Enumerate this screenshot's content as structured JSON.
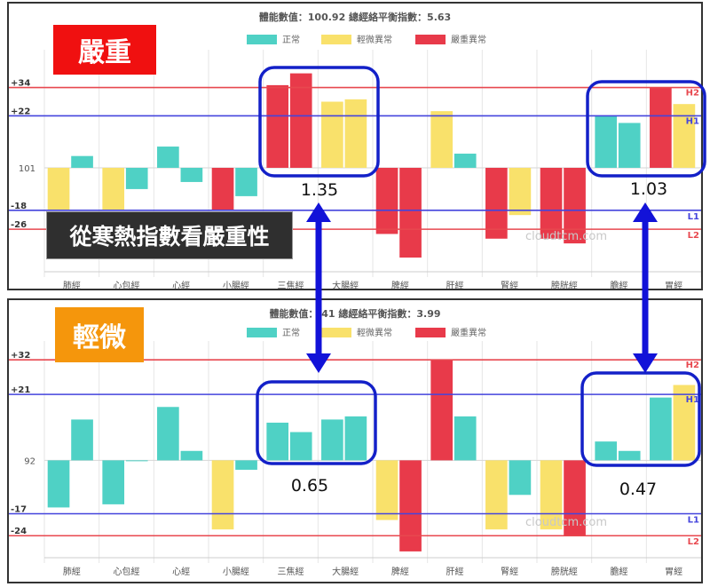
{
  "colors": {
    "normal": "#4fd1c5",
    "mild": "#f9e16b",
    "severe": "#e83a4a",
    "line_red": "#e8484f",
    "line_blue": "#4444dd",
    "box": "#1320c8"
  },
  "labels": {
    "severe_tag": "嚴重",
    "mild_tag": "輕微",
    "caption": "從寒熱指數看嚴重性",
    "watermark": "cloudtcm.com"
  },
  "annotations": {
    "top_left": "1.35",
    "top_right": "1.03",
    "bottom_left": "0.65",
    "bottom_right": "0.47"
  },
  "chart_data": [
    {
      "type": "bar",
      "title": "體能數值：100.92 總經絡平衡指數：5.63",
      "legend": [
        "正常",
        "輕微異常",
        "嚴重異常"
      ],
      "categories": [
        "肺經",
        "心包經",
        "心經",
        "小腸經",
        "三焦經",
        "大腸經",
        "脾經",
        "肝經",
        "腎經",
        "膀胱經",
        "膽經",
        "胃經"
      ],
      "baseline_label": "101",
      "reference_lines": [
        {
          "label": "+34",
          "tag": "H2",
          "value": 34,
          "color": "red"
        },
        {
          "label": "+22",
          "tag": "H1",
          "value": 22,
          "color": "blue"
        },
        {
          "label": "-18",
          "tag": "L1",
          "value": -18,
          "color": "blue"
        },
        {
          "label": "-26",
          "tag": "L2",
          "value": -26,
          "color": "red"
        }
      ],
      "series_by_category": [
        [
          {
            "v": -18,
            "s": "mild"
          },
          {
            "v": 5,
            "s": "normal"
          }
        ],
        [
          {
            "v": -18,
            "s": "mild"
          },
          {
            "v": -9,
            "s": "normal"
          }
        ],
        [
          {
            "v": 9,
            "s": "normal"
          },
          {
            "v": -6,
            "s": "normal"
          }
        ],
        [
          {
            "v": -18,
            "s": "severe"
          },
          {
            "v": -12,
            "s": "normal"
          }
        ],
        [
          {
            "v": 35,
            "s": "severe"
          },
          {
            "v": 40,
            "s": "severe"
          }
        ],
        [
          {
            "v": 28,
            "s": "mild"
          },
          {
            "v": 29,
            "s": "mild"
          }
        ],
        [
          {
            "v": -28,
            "s": "severe"
          },
          {
            "v": -38,
            "s": "severe"
          }
        ],
        [
          {
            "v": 24,
            "s": "mild"
          },
          {
            "v": 6,
            "s": "normal"
          }
        ],
        [
          {
            "v": -30,
            "s": "severe"
          },
          {
            "v": -20,
            "s": "mild"
          }
        ],
        [
          {
            "v": -30,
            "s": "severe"
          },
          {
            "v": -32,
            "s": "severe"
          }
        ],
        [
          {
            "v": 22,
            "s": "normal"
          },
          {
            "v": 19,
            "s": "normal"
          }
        ],
        [
          {
            "v": 34,
            "s": "severe"
          },
          {
            "v": 27,
            "s": "mild"
          }
        ]
      ],
      "ylim": [
        -44,
        50
      ]
    },
    {
      "type": "bar",
      "title": "體能數值：",
      "title_rest": "41 總經絡平衡指數：3.99",
      "legend": [
        "正常",
        "輕微異常",
        "嚴重異常"
      ],
      "categories": [
        "肺經",
        "心包經",
        "心經",
        "小腸經",
        "三焦經",
        "大腸經",
        "脾經",
        "肝經",
        "腎經",
        "膀胱經",
        "膽經",
        "胃經"
      ],
      "baseline_label": "92",
      "reference_lines": [
        {
          "label": "+32",
          "tag": "H2",
          "value": 32,
          "color": "red"
        },
        {
          "label": "+21",
          "tag": "H1",
          "value": 21,
          "color": "blue"
        },
        {
          "label": "-17",
          "tag": "L1",
          "value": -17,
          "color": "blue"
        },
        {
          "label": "-24",
          "tag": "L2",
          "value": -24,
          "color": "red"
        }
      ],
      "series_by_category": [
        [
          {
            "v": -15,
            "s": "normal"
          },
          {
            "v": 13,
            "s": "normal"
          }
        ],
        [
          {
            "v": -14,
            "s": "normal"
          },
          {
            "v": 0,
            "s": "normal"
          }
        ],
        [
          {
            "v": 17,
            "s": "normal"
          },
          {
            "v": 3,
            "s": "normal"
          }
        ],
        [
          {
            "v": -22,
            "s": "mild"
          },
          {
            "v": -3,
            "s": "normal"
          }
        ],
        [
          {
            "v": 12,
            "s": "normal"
          },
          {
            "v": 9,
            "s": "normal"
          }
        ],
        [
          {
            "v": 13,
            "s": "normal"
          },
          {
            "v": 14,
            "s": "normal"
          }
        ],
        [
          {
            "v": -19,
            "s": "mild"
          },
          {
            "v": -29,
            "s": "severe"
          }
        ],
        [
          {
            "v": 32,
            "s": "severe"
          },
          {
            "v": 14,
            "s": "normal"
          }
        ],
        [
          {
            "v": -22,
            "s": "mild"
          },
          {
            "v": -11,
            "s": "normal"
          }
        ],
        [
          {
            "v": -22,
            "s": "mild"
          },
          {
            "v": -24,
            "s": "severe"
          }
        ],
        [
          {
            "v": 6,
            "s": "normal"
          },
          {
            "v": 3,
            "s": "normal"
          }
        ],
        [
          {
            "v": 20,
            "s": "normal"
          },
          {
            "v": 24,
            "s": "mild"
          }
        ]
      ],
      "ylim": [
        -31,
        38
      ]
    }
  ]
}
